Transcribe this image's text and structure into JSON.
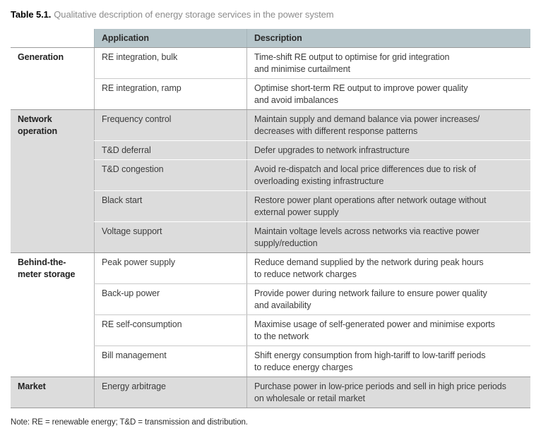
{
  "title": {
    "label": "Table 5.1.",
    "text": "Qualitative description of energy storage services in the power system"
  },
  "table": {
    "headers": {
      "category": "",
      "application": "Application",
      "description": "Description"
    },
    "sections": [
      {
        "category": "Generation",
        "shaded": false,
        "rows": [
          {
            "application": "RE integration, bulk",
            "description": "Time-shift RE output to optimise for grid integration\nand minimise curtailment"
          },
          {
            "application": "RE integration, ramp",
            "description": "Optimise short-term RE output to improve power quality\nand avoid imbalances"
          }
        ]
      },
      {
        "category": "Network\noperation",
        "shaded": true,
        "rows": [
          {
            "application": "Frequency control",
            "description": "Maintain supply and demand balance via power increases/\ndecreases with different response patterns"
          },
          {
            "application": "T&D deferral",
            "description": "Defer upgrades to network infrastructure"
          },
          {
            "application": "T&D congestion",
            "description": "Avoid re-dispatch and local price differences due to risk of\noverloading existing infrastructure"
          },
          {
            "application": "Black start",
            "description": "Restore power plant operations after network outage without\nexternal power supply"
          },
          {
            "application": "Voltage support",
            "description": "Maintain voltage levels across networks via reactive power\nsupply/reduction"
          }
        ]
      },
      {
        "category": "Behind-the-\nmeter storage",
        "shaded": false,
        "rows": [
          {
            "application": "Peak power supply",
            "description": "Reduce demand supplied by the network during peak hours\nto reduce network charges"
          },
          {
            "application": "Back-up power",
            "description": "Provide power during network failure to ensure power quality\nand availability"
          },
          {
            "application": "RE self-consumption",
            "description": "Maximise usage of self-generated power and minimise exports\nto the network"
          },
          {
            "application": "Bill management",
            "description": "Shift energy consumption from high-tariff to low-tariff periods\nto reduce energy charges"
          }
        ]
      },
      {
        "category": "Market",
        "shaded": true,
        "rows": [
          {
            "application": "Energy arbitrage",
            "description": "Purchase power in low-price periods and sell in high price periods\non wholesale or retail market"
          }
        ]
      }
    ]
  },
  "note": "Note: RE = renewable energy; T&D = transmission and distribution.",
  "colors": {
    "header_bg": "#b6c5ca",
    "shaded_section_bg": "#dcdcdc",
    "section_border": "#9b9b9b",
    "title_accent": "#000000",
    "title_text": "#8c8c8c"
  }
}
